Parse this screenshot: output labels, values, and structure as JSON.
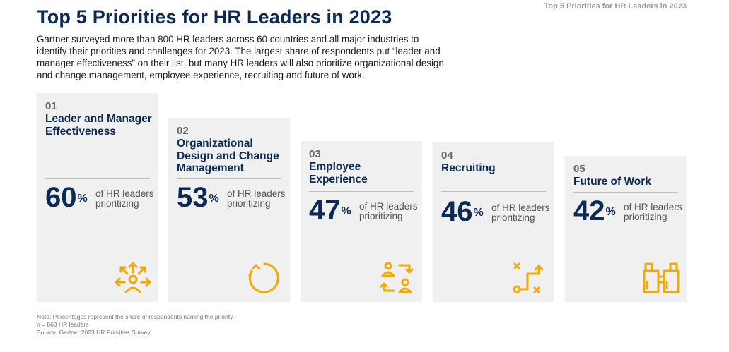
{
  "corner_title": "Top 5 Priorities for HR Leaders in 2023",
  "title": "Top 5 Priorities for HR Leaders in 2023",
  "intro": "Gartner surveyed more than 800 HR leaders across 60 countries and all major industries to identify their priorities and challenges for 2023. The largest share of respondents put “leader and manager effectiveness” on their list, but many HR leaders will also prioritize organizational design and change management, employee experience, recruiting and future of work.",
  "chart_data": {
    "type": "bar",
    "title": "Top 5 Priorities for HR Leaders in 2023",
    "categories": [
      "Leader and Manager Effectiveness",
      "Organizational Design and Change Management",
      "Employee Experience",
      "Recruiting",
      "Future of Work"
    ],
    "values": [
      60,
      53,
      47,
      46,
      42
    ],
    "unit": "%",
    "ylim": [
      0,
      60
    ],
    "grid": false
  },
  "cards": [
    {
      "num": "01",
      "name": "Leader and Manager Effectiveness",
      "pct": "60",
      "sign": "%",
      "desc": "of HR leaders prioritizing",
      "icon": "leadership-arrows-icon"
    },
    {
      "num": "02",
      "name": "Organizational Design and Change Management",
      "pct": "53",
      "sign": "%",
      "desc": "of HR leaders prioritizing",
      "icon": "circular-change-arrow-icon"
    },
    {
      "num": "03",
      "name": "Employee Experience",
      "pct": "47",
      "sign": "%",
      "desc": "of HR leaders prioritizing",
      "icon": "people-exchange-icon"
    },
    {
      "num": "04",
      "name": "Recruiting",
      "pct": "46",
      "sign": "%",
      "desc": "of HR leaders prioritizing",
      "icon": "strategy-play-icon"
    },
    {
      "num": "05",
      "name": "Future of Work",
      "pct": "42",
      "sign": "%",
      "desc": "of HR leaders prioritizing",
      "icon": "binoculars-icon"
    }
  ],
  "notes": {
    "note": "Note: Percentages represent the share of respondents naming the priority.",
    "n": "n = 860 HR leaders",
    "source": "Source: Gartner 2023 HR Priorities Survey"
  },
  "colors": {
    "navy": "#0b2a55",
    "accent": "#f5a800",
    "card": "#f0f0f0"
  }
}
